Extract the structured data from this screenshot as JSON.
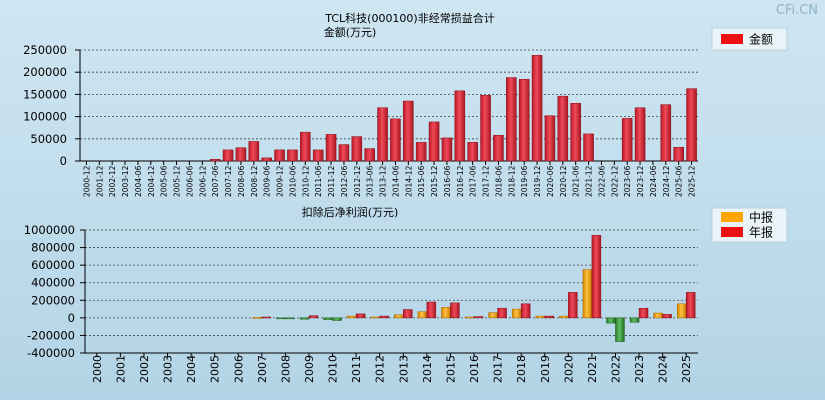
{
  "watermark": "CFi.CN",
  "chart_data": [
    {
      "type": "bar",
      "title": "TCL科技(000100)非经常损益合计",
      "ylabel": "金额(万元)",
      "xlabel": "",
      "ylim": [
        0,
        250000
      ],
      "yticks": [
        0,
        50000,
        100000,
        150000,
        200000,
        250000
      ],
      "grid": true,
      "legend": "top-right",
      "categories": [
        "2000-12",
        "2001-12",
        "2002-12",
        "2003-12",
        "2004-06",
        "2004-12",
        "2005-06",
        "2005-12",
        "2006-06",
        "2006-12",
        "2007-06",
        "2007-12",
        "2008-06",
        "2008-12",
        "2009-06",
        "2009-12",
        "2010-06",
        "2010-12",
        "2011-06",
        "2011-12",
        "2012-06",
        "2012-12",
        "2013-06",
        "2013-12",
        "2014-06",
        "2014-12",
        "2015-06",
        "2015-12",
        "2016-06",
        "2016-12",
        "2017-06",
        "2017-12",
        "2018-06",
        "2018-12",
        "2019-06",
        "2019-12",
        "2020-06",
        "2020-12",
        "2021-06",
        "2021-12",
        "2022-06",
        "2022-12",
        "2023-06",
        "2023-12",
        "2024-06",
        "2024-12",
        "2025-06",
        "2025-12"
      ],
      "series": [
        {
          "name": "金额",
          "color": "#ee1111",
          "values": [
            0,
            0,
            0,
            0,
            0,
            0,
            0,
            0,
            0,
            0,
            4000,
            25000,
            30000,
            44000,
            7000,
            25000,
            25000,
            65000,
            25000,
            60000,
            37000,
            55000,
            28000,
            120000,
            95000,
            135000,
            42000,
            88000,
            52000,
            158000,
            42000,
            148000,
            58000,
            188000,
            184000,
            238000,
            102000,
            146000,
            130000,
            61000,
            0,
            0,
            96000,
            120000,
            0,
            127000,
            31000,
            163000
          ]
        }
      ]
    },
    {
      "type": "bar",
      "title": "扣除后净利润(万元)",
      "ylabel": "",
      "xlabel": "",
      "ylim": [
        -400000,
        1000000
      ],
      "yticks": [
        -400000,
        -200000,
        0,
        200000,
        400000,
        600000,
        800000,
        1000000
      ],
      "grid": true,
      "legend": "top-right",
      "categories": [
        "2000",
        "2001",
        "2002",
        "2003",
        "2004",
        "2005",
        "2006",
        "2007",
        "2008",
        "2009",
        "2010",
        "2011",
        "2012",
        "2013",
        "2014",
        "2015",
        "2016",
        "2017",
        "2018",
        "2019",
        "2020",
        "2021",
        "2022",
        "2023",
        "2024",
        "2025"
      ],
      "series": [
        {
          "name": "中报",
          "color": "#ffa500",
          "values": [
            0,
            0,
            0,
            0,
            0,
            0,
            0,
            5000,
            -8000,
            -15000,
            -20000,
            20000,
            10000,
            35000,
            70000,
            120000,
            10000,
            60000,
            100000,
            20000,
            20000,
            550000,
            -60000,
            -50000,
            55000,
            160000
          ]
        },
        {
          "name": "年报",
          "color": "#ee1111",
          "values": [
            0,
            0,
            0,
            0,
            0,
            0,
            0,
            10000,
            -10000,
            25000,
            -30000,
            45000,
            20000,
            95000,
            180000,
            170000,
            15000,
            110000,
            160000,
            20000,
            290000,
            940000,
            -270000,
            110000,
            40000,
            290000
          ]
        }
      ]
    }
  ]
}
